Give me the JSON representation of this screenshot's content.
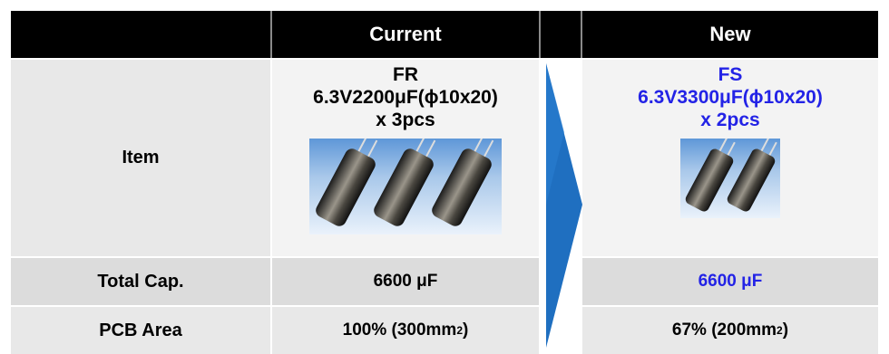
{
  "header": {
    "col1": "",
    "current": "Current",
    "new": "New"
  },
  "rows": {
    "item": {
      "label": "Item",
      "current": {
        "series": "FR",
        "spec": "6.3V2200μF(ϕ10x20)",
        "qty": "x 3pcs",
        "image": "capacitor-photo-3"
      },
      "new": {
        "series": "FS",
        "spec": "6.3V3300μF(ϕ10x20)",
        "qty": "x 2pcs",
        "image": "capacitor-photo-2"
      }
    },
    "total_cap": {
      "label": "Total Cap.",
      "current": "6600 μF",
      "new": "6600 μF"
    },
    "pcb_area": {
      "label": "PCB Area",
      "current_main": "100% (300mm",
      "current_sup": "2",
      "current_close": ")",
      "new_main": "67% (200mm",
      "new_sup": "2",
      "new_close": ")"
    }
  },
  "colors": {
    "header_bg": "#000000",
    "highlight": "#2323e6",
    "arrow": "#1f6fc0"
  }
}
